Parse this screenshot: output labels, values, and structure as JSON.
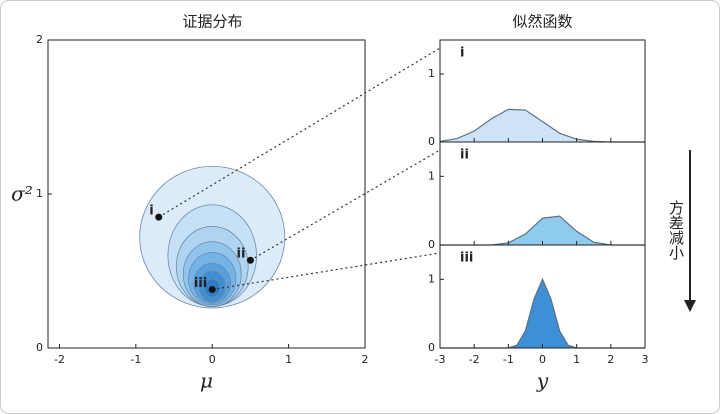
{
  "chart_data": [
    {
      "type": "contour",
      "title": "证据分布",
      "xlabel": "μ",
      "ylabel": "σ²",
      "xlim": [
        -2.15,
        2
      ],
      "ylim": [
        0,
        2
      ],
      "xticks": [
        -2,
        -1,
        0,
        1,
        2
      ],
      "yticks": [
        0,
        1,
        2
      ],
      "contours": [
        {
          "cx": 0,
          "cy": 0.72,
          "rx": 0.95,
          "ry": 0.46,
          "color": "#dcebf9"
        },
        {
          "cx": 0,
          "cy": 0.6,
          "rx": 0.58,
          "ry": 0.33,
          "color": "#c6e0f6"
        },
        {
          "cx": 0,
          "cy": 0.53,
          "rx": 0.47,
          "ry": 0.26,
          "color": "#aed4f2"
        },
        {
          "cx": 0,
          "cy": 0.48,
          "rx": 0.38,
          "ry": 0.21,
          "color": "#92c5ed"
        },
        {
          "cx": 0,
          "cy": 0.45,
          "rx": 0.31,
          "ry": 0.17,
          "color": "#74b3e6"
        },
        {
          "cx": 0,
          "cy": 0.42,
          "rx": 0.24,
          "ry": 0.13,
          "color": "#58a0dd"
        },
        {
          "cx": 0,
          "cy": 0.4,
          "rx": 0.17,
          "ry": 0.1,
          "color": "#408ed3"
        },
        {
          "cx": 0,
          "cy": 0.39,
          "rx": 0.1,
          "ry": 0.06,
          "color": "#2f7dc6"
        }
      ],
      "points": [
        {
          "label": "i",
          "x": -0.7,
          "y": 0.85
        },
        {
          "label": "ii",
          "x": 0.5,
          "y": 0.57
        },
        {
          "label": "iii",
          "x": 0,
          "y": 0.38
        }
      ]
    },
    {
      "type": "area",
      "title": "似然函数",
      "label": "i",
      "color": "#cfe3f6",
      "xlim": [
        -3,
        3
      ],
      "ylim": [
        0,
        1.5
      ],
      "xticks": [
        -3,
        -2,
        -1,
        0,
        1,
        2,
        3
      ],
      "yticks": [
        0,
        1
      ],
      "x": [
        -3,
        -2.5,
        -2,
        -1.5,
        -1,
        -0.5,
        0,
        0.5,
        1,
        1.5,
        2,
        2.5,
        3
      ],
      "values": [
        0.01,
        0.05,
        0.16,
        0.34,
        0.48,
        0.47,
        0.3,
        0.13,
        0.04,
        0.01,
        0,
        0,
        0
      ]
    },
    {
      "type": "area",
      "label": "ii",
      "color": "#8fcbee",
      "xlim": [
        -3,
        3
      ],
      "ylim": [
        0,
        1.5
      ],
      "xticks": [
        -3,
        -2,
        -1,
        0,
        1,
        2,
        3
      ],
      "yticks": [
        0,
        1
      ],
      "x": [
        -3,
        -2,
        -1.5,
        -1,
        -0.5,
        0,
        0.5,
        1,
        1.5,
        2,
        2.5,
        3
      ],
      "values": [
        0,
        0,
        0,
        0.03,
        0.16,
        0.39,
        0.42,
        0.2,
        0.04,
        0,
        0,
        0
      ]
    },
    {
      "type": "area",
      "label": "iii",
      "color": "#3d8fd6",
      "xlabel": "y",
      "xlim": [
        -3,
        3
      ],
      "ylim": [
        0,
        1.5
      ],
      "xticks": [
        -3,
        -2,
        -1,
        0,
        1,
        2,
        3
      ],
      "yticks": [
        0,
        1
      ],
      "x": [
        -3,
        -1.5,
        -1,
        -0.75,
        -0.5,
        -0.25,
        0,
        0.25,
        0.5,
        0.75,
        1,
        1.5,
        3
      ],
      "values": [
        0,
        0,
        0,
        0.04,
        0.25,
        0.71,
        1,
        0.71,
        0.25,
        0.04,
        0,
        0,
        0
      ]
    }
  ],
  "arrow_label": "方差减小"
}
